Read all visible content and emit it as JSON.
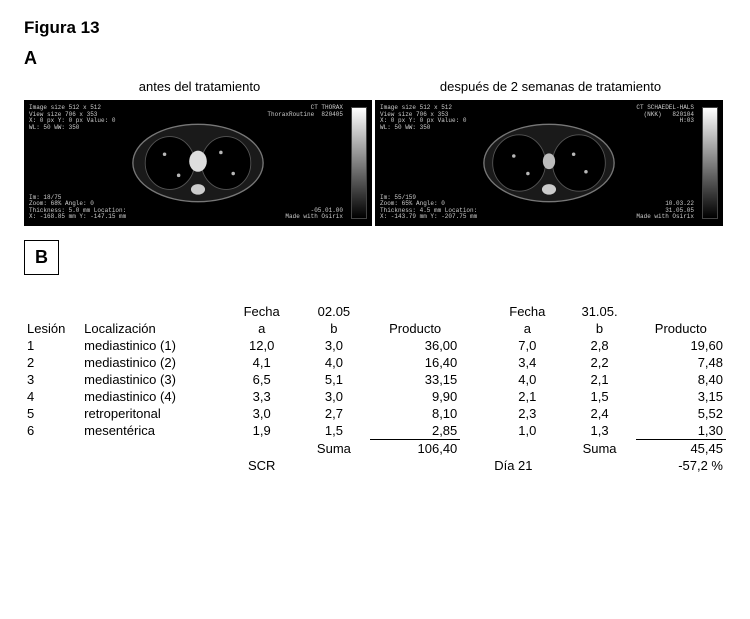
{
  "figure_label": "Figura 13",
  "panel_a_letter": "A",
  "panel_b_letter": "B",
  "caption_before": "antes del tratamiento",
  "caption_after": "después de 2 semanas de tratamiento",
  "ct_left": {
    "tl": "Image size 512 x 512\nView size 706 x 353\nX: 0 px Y: 0 px Value: 0\nWL: 50 WW: 350",
    "tr": "CT THORAX\nThoraxRoutine  820405",
    "bl": "Im: 18/75\nZoom: 68% Angle: 0\nThickness: 5.0 mm Location:\nX: -168.85 mm Y: -147.15 mm",
    "br": "-05.01.00\nMade with Osirix"
  },
  "ct_right": {
    "tl": "Image size 512 x 512\nView size 706 x 353\nX: 0 px Y: 0 px Value: 0\nWL: 50 WW: 350",
    "tr": "CT SCHAEDEL-HALS\n(NKK)   820104\nH:03",
    "bl": "Im: 55/159\nZoom: 65% Angle: 0\nThickness: 4.5 mm Location:\nX: -143.79 mm Y: -207.75 mm",
    "br": "10.03.22\n31.05.05\nMade with Osirix"
  },
  "table": {
    "hdr": {
      "fecha": "Fecha",
      "date1": "02.05",
      "date2": "31.05.",
      "lesion": "Lesión",
      "loc": "Localización",
      "a": "a",
      "b": "b",
      "producto": "Producto"
    },
    "rows": [
      {
        "n": "1",
        "loc": "mediastinico (1)",
        "a1": "12,0",
        "b1": "3,0",
        "p1": "36,00",
        "a2": "7,0",
        "b2": "2,8",
        "p2": "19,60"
      },
      {
        "n": "2",
        "loc": "mediastinico (2)",
        "a1": "4,1",
        "b1": "4,0",
        "p1": "16,40",
        "a2": "3,4",
        "b2": "2,2",
        "p2": "7,48"
      },
      {
        "n": "3",
        "loc": "mediastinico (3)",
        "a1": "6,5",
        "b1": "5,1",
        "p1": "33,15",
        "a2": "4,0",
        "b2": "2,1",
        "p2": "8,40"
      },
      {
        "n": "4",
        "loc": "mediastinico (4)",
        "a1": "3,3",
        "b1": "3,0",
        "p1": "9,90",
        "a2": "2,1",
        "b2": "1,5",
        "p2": "3,15"
      },
      {
        "n": "5",
        "loc": "retroperitonal",
        "a1": "3,0",
        "b1": "2,7",
        "p1": "8,10",
        "a2": "2,3",
        "b2": "2,4",
        "p2": "5,52"
      },
      {
        "n": "6",
        "loc": "mesentérica",
        "a1": "1,9",
        "b1": "1,5",
        "p1": "2,85",
        "a2": "1,0",
        "b2": "1,3",
        "p2": "1,30"
      }
    ],
    "suma_label": "Suma",
    "suma1": "106,40",
    "suma2": "45,45",
    "scr_label": "SCR",
    "scr_day": "Día 21",
    "scr_val": "-57,2 %"
  }
}
